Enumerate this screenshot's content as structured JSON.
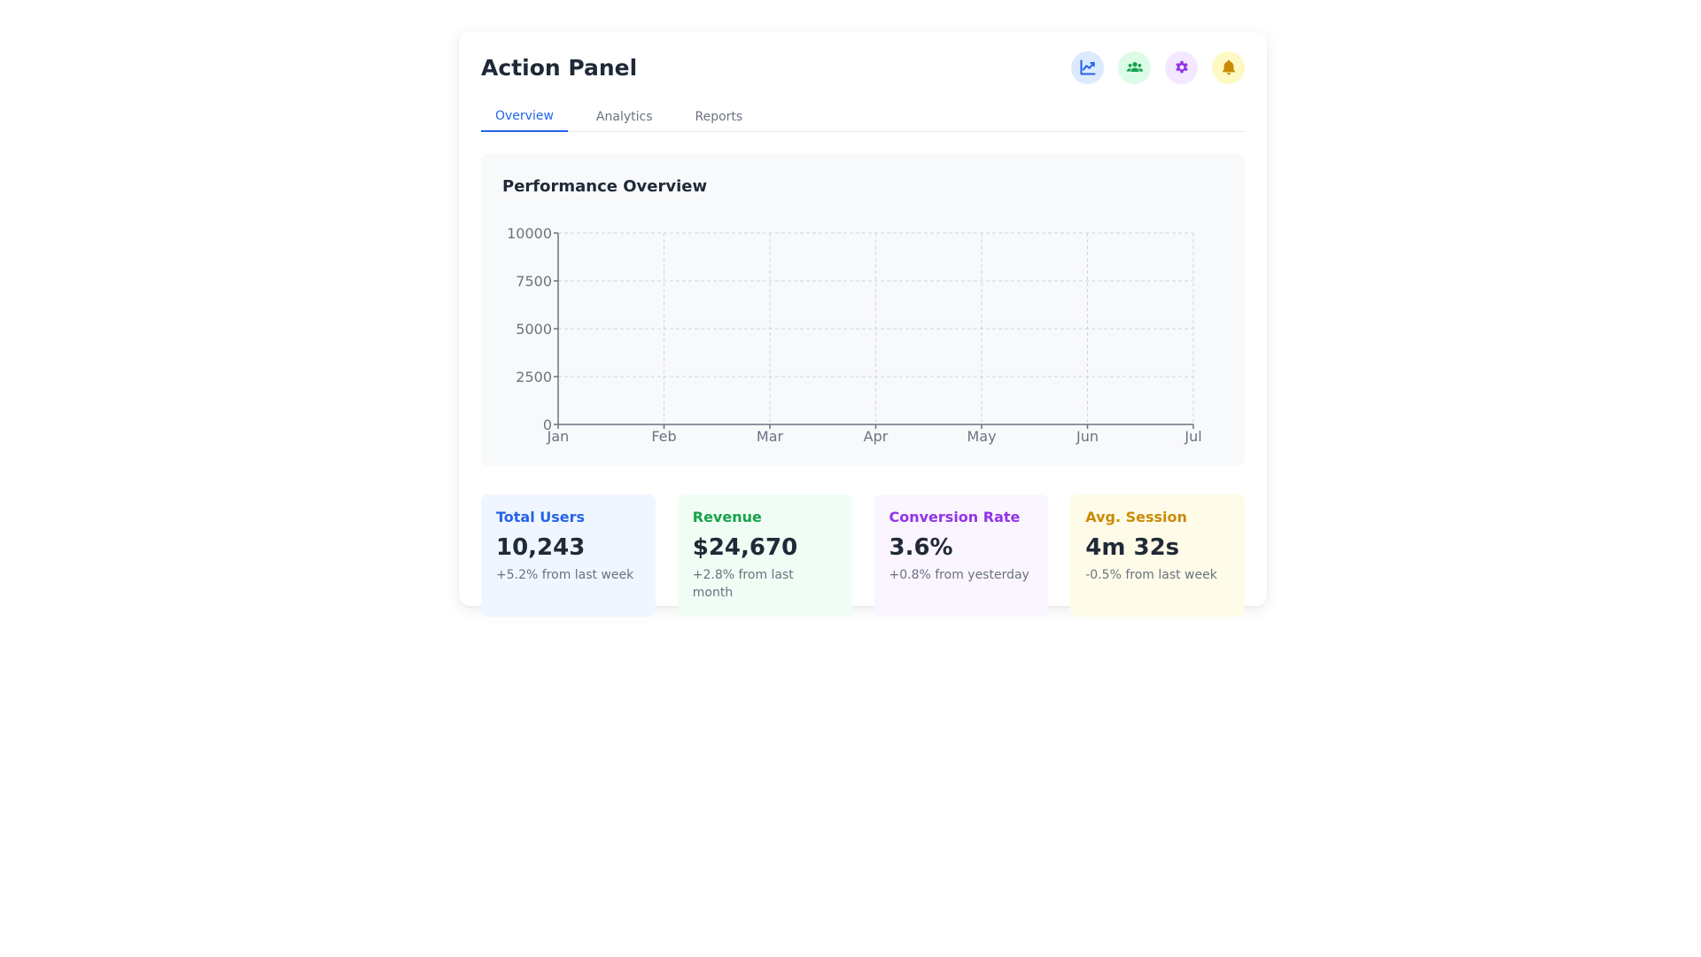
{
  "panel": {
    "title": "Action Panel"
  },
  "header_icons": [
    {
      "name": "chart-line-icon",
      "bg": "#dbeafe",
      "color": "#2563eb"
    },
    {
      "name": "users-icon",
      "bg": "#dcfce7",
      "color": "#16a34a"
    },
    {
      "name": "gear-icon",
      "bg": "#f3e8ff",
      "color": "#9333ea"
    },
    {
      "name": "bell-icon",
      "bg": "#fef9c3",
      "color": "#ca8a04"
    }
  ],
  "tabs": [
    {
      "label": "Overview",
      "active": true
    },
    {
      "label": "Analytics",
      "active": false
    },
    {
      "label": "Reports",
      "active": false
    }
  ],
  "chart": {
    "title": "Performance Overview"
  },
  "chart_data": {
    "type": "line",
    "x": [
      "Jan",
      "Feb",
      "Mar",
      "Apr",
      "May",
      "Jun",
      "Jul"
    ],
    "series": [],
    "ylim": [
      0,
      10000
    ],
    "yticks": [
      0,
      2500,
      5000,
      7500,
      10000
    ],
    "grid": true
  },
  "stats": [
    {
      "label": "Total Users",
      "value": "10,243",
      "change": "+5.2% from last week",
      "color": "#2563eb",
      "bg": "#eff6ff"
    },
    {
      "label": "Revenue",
      "value": "$24,670",
      "change": "+2.8% from last month",
      "color": "#16a34a",
      "bg": "#f0fdf4"
    },
    {
      "label": "Conversion Rate",
      "value": "3.6%",
      "change": "+0.8% from yesterday",
      "color": "#9333ea",
      "bg": "#faf5ff"
    },
    {
      "label": "Avg. Session",
      "value": "4m 32s",
      "change": "-0.5% from last week",
      "color": "#ca8a04",
      "bg": "#fefce8"
    }
  ]
}
